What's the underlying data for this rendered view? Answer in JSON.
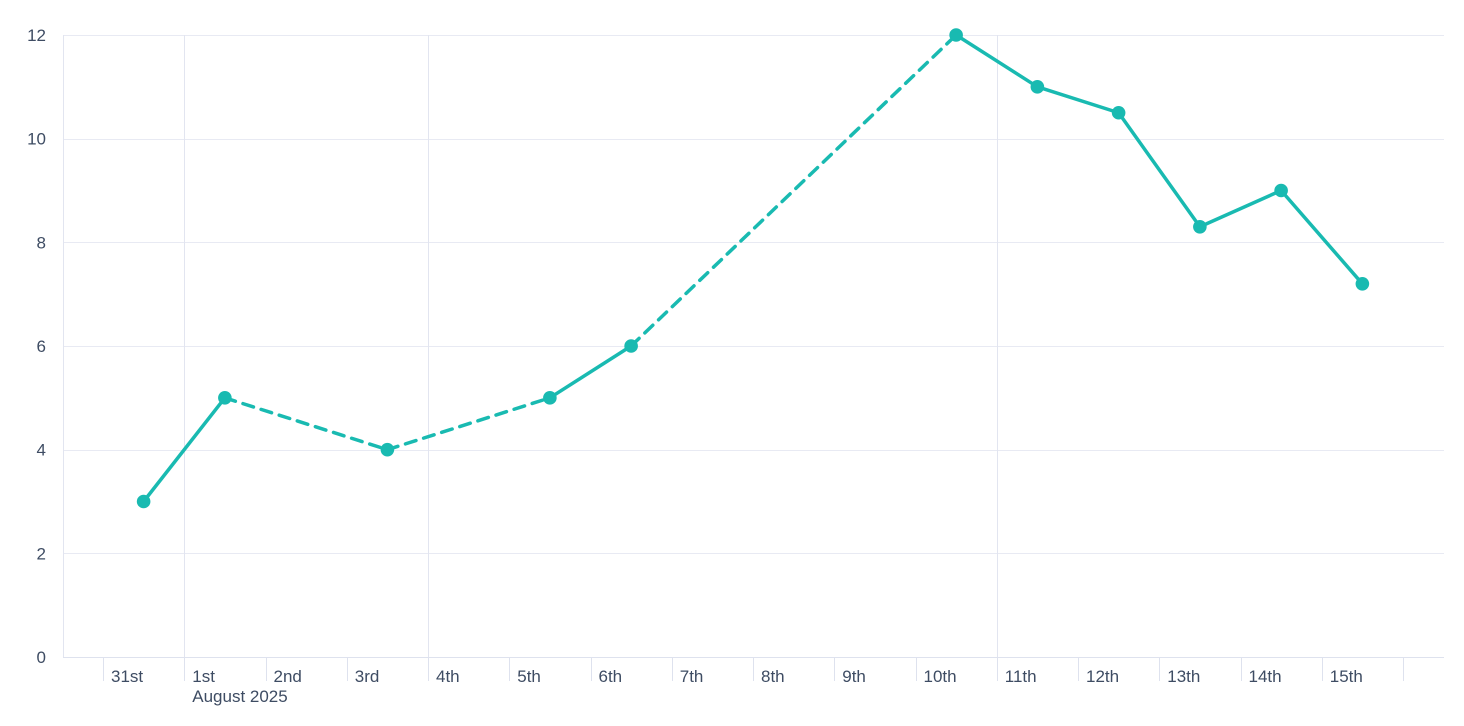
{
  "chart_data": {
    "type": "line",
    "title": "",
    "x_axis": {
      "slot_labels": [
        "31st",
        "1st",
        "2nd",
        "3rd",
        "4th",
        "5th",
        "6th",
        "7th",
        "8th",
        "9th",
        "10th",
        "11th",
        "12th",
        "13th",
        "14th",
        "15th"
      ],
      "month_annotation": "August 2025",
      "month_annotation_slot": 1,
      "vertical_gridline_slots": [
        1,
        4,
        11
      ]
    },
    "y_axis": {
      "tick_labels": [
        "0",
        "2",
        "4",
        "6",
        "8",
        "10",
        "12"
      ],
      "ticks": [
        0,
        2,
        4,
        6,
        8,
        10,
        12
      ],
      "min": 0,
      "max": 12
    },
    "grid": "on",
    "legend": "none",
    "series": [
      {
        "name": "values",
        "color": "#19BAB1",
        "marker": "circle",
        "points": [
          {
            "x": "31st",
            "slot": 0,
            "value": 3
          },
          {
            "x": "1st",
            "slot": 1,
            "value": 5
          },
          {
            "x": "3rd",
            "slot": 3,
            "value": 4
          },
          {
            "x": "5th",
            "slot": 5,
            "value": 5
          },
          {
            "x": "6th",
            "slot": 6,
            "value": 6
          },
          {
            "x": "10th",
            "slot": 10,
            "value": 12
          },
          {
            "x": "11th",
            "slot": 11,
            "value": 11
          },
          {
            "x": "12th",
            "slot": 12,
            "value": 10.5
          },
          {
            "x": "13th",
            "slot": 13,
            "value": 8.3
          },
          {
            "x": "14th",
            "slot": 14,
            "value": 9
          },
          {
            "x": "15th",
            "slot": 15,
            "value": 7.2
          }
        ],
        "segment_styles": [
          "solid",
          "dashed",
          "dashed",
          "solid",
          "dashed",
          "solid",
          "solid",
          "solid",
          "solid",
          "solid"
        ]
      }
    ],
    "colors": {
      "series": "#19BAB1",
      "label_text": "#3E4C63",
      "gridline_horizontal": "#E8EAF3",
      "gridline_vertical": "#E2E5F0",
      "axis_line": "#DEE2EE",
      "background": "#FFFFFF"
    }
  }
}
